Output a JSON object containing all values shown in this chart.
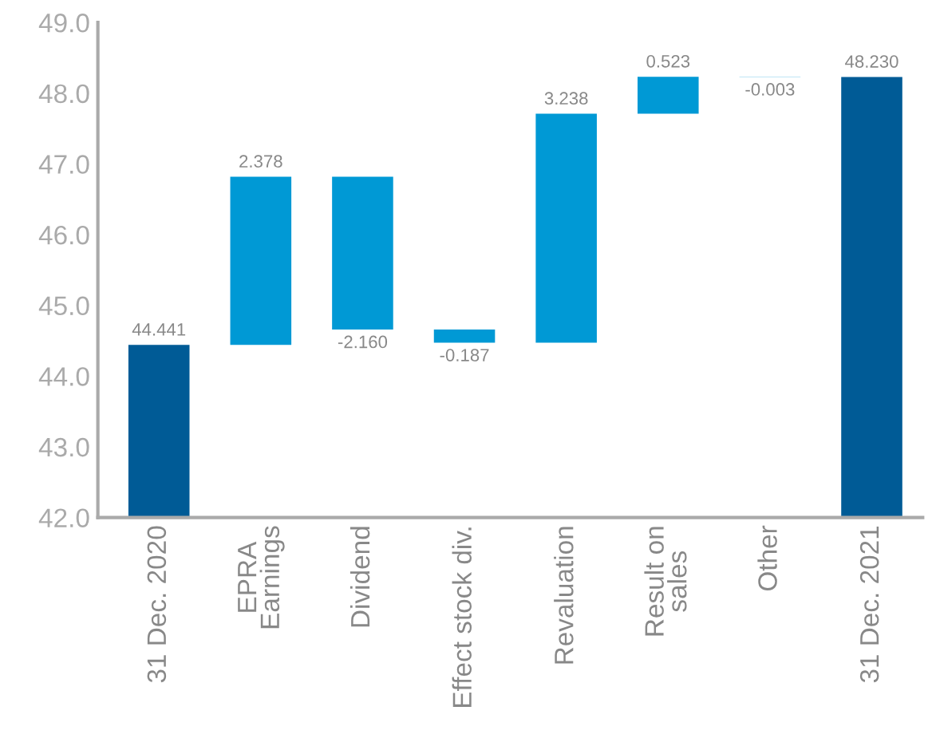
{
  "chart_data": {
    "type": "bar",
    "categories": [
      "31 Dec. 2020",
      "EPRA\nEarnings",
      "Dividend",
      "Effect stock div.",
      "Revaluation",
      "Result on\nsales",
      "Other",
      "31 Dec. 2021"
    ],
    "values": [
      44.441,
      2.378,
      -2.16,
      -0.187,
      3.238,
      0.523,
      -0.003,
      48.23
    ],
    "base": [
      null,
      44.441,
      46.819,
      44.659,
      44.472,
      47.71,
      48.233,
      null
    ],
    "colors": [
      "#005b96",
      "#0099d5",
      "#0099d5",
      "#0099d5",
      "#0099d5",
      "#0099d5",
      "#0099d5",
      "#005b96"
    ],
    "value_labels": [
      "44.441",
      "2.378",
      "-2.160",
      "-0.187",
      "3.238",
      "0.523",
      "-0.003",
      "48.230"
    ],
    "ylim": [
      42,
      49
    ],
    "yticks": [
      {
        "value": 42,
        "label": "42.0"
      },
      {
        "value": 43,
        "label": "43.0"
      },
      {
        "value": 44,
        "label": "44.0"
      },
      {
        "value": 45,
        "label": "45.0"
      },
      {
        "value": 46,
        "label": "46.0"
      },
      {
        "value": 47,
        "label": "47.0"
      },
      {
        "value": 48,
        "label": "48.0"
      },
      {
        "value": 49,
        "label": "49.0"
      }
    ],
    "grid": false
  }
}
